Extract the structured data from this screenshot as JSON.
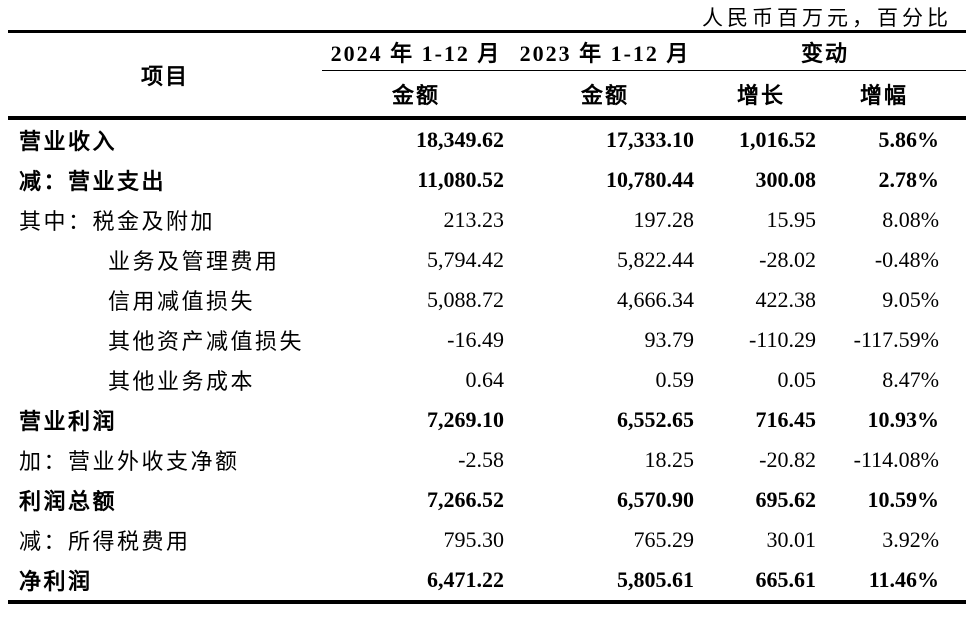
{
  "caption": "人民币百万元，百分比",
  "header": {
    "item": "项目",
    "period_2024": "2024 年 1-12 月",
    "period_2023": "2023 年 1-12 月",
    "change": "变动",
    "amount_2024": "金额",
    "amount_2023": "金额",
    "growth": "增长",
    "growth_rate": "增幅"
  },
  "rows": [
    {
      "label": "营业收入",
      "bold": true,
      "indent": false,
      "amount_2024": "18,349.62",
      "amount_2023": "17,333.10",
      "growth": "1,016.52",
      "rate": "5.86%"
    },
    {
      "label": "减：营业支出",
      "bold": true,
      "indent": false,
      "amount_2024": "11,080.52",
      "amount_2023": "10,780.44",
      "growth": "300.08",
      "rate": "2.78%"
    },
    {
      "label": "其中：税金及附加",
      "bold": false,
      "indent": false,
      "amount_2024": "213.23",
      "amount_2023": "197.28",
      "growth": "15.95",
      "rate": "8.08%"
    },
    {
      "label": "业务及管理费用",
      "bold": false,
      "indent": true,
      "amount_2024": "5,794.42",
      "amount_2023": "5,822.44",
      "growth": "-28.02",
      "rate": "-0.48%"
    },
    {
      "label": "信用减值损失",
      "bold": false,
      "indent": true,
      "amount_2024": "5,088.72",
      "amount_2023": "4,666.34",
      "growth": "422.38",
      "rate": "9.05%"
    },
    {
      "label": "其他资产减值损失",
      "bold": false,
      "indent": true,
      "amount_2024": "-16.49",
      "amount_2023": "93.79",
      "growth": "-110.29",
      "rate": "-117.59%"
    },
    {
      "label": "其他业务成本",
      "bold": false,
      "indent": true,
      "amount_2024": "0.64",
      "amount_2023": "0.59",
      "growth": "0.05",
      "rate": "8.47%"
    },
    {
      "label": "营业利润",
      "bold": true,
      "indent": false,
      "amount_2024": "7,269.10",
      "amount_2023": "6,552.65",
      "growth": "716.45",
      "rate": "10.93%"
    },
    {
      "label": "加：营业外收支净额",
      "bold": false,
      "indent": false,
      "amount_2024": "-2.58",
      "amount_2023": "18.25",
      "growth": "-20.82",
      "rate": "-114.08%"
    },
    {
      "label": "利润总额",
      "bold": true,
      "indent": false,
      "amount_2024": "7,266.52",
      "amount_2023": "6,570.90",
      "growth": "695.62",
      "rate": "10.59%"
    },
    {
      "label": "减：所得税费用",
      "bold": false,
      "indent": false,
      "amount_2024": "795.30",
      "amount_2023": "765.29",
      "growth": "30.01",
      "rate": "3.92%"
    },
    {
      "label": "净利润",
      "bold": true,
      "indent": false,
      "amount_2024": "6,471.22",
      "amount_2023": "5,805.61",
      "growth": "665.61",
      "rate": "11.46%"
    }
  ]
}
